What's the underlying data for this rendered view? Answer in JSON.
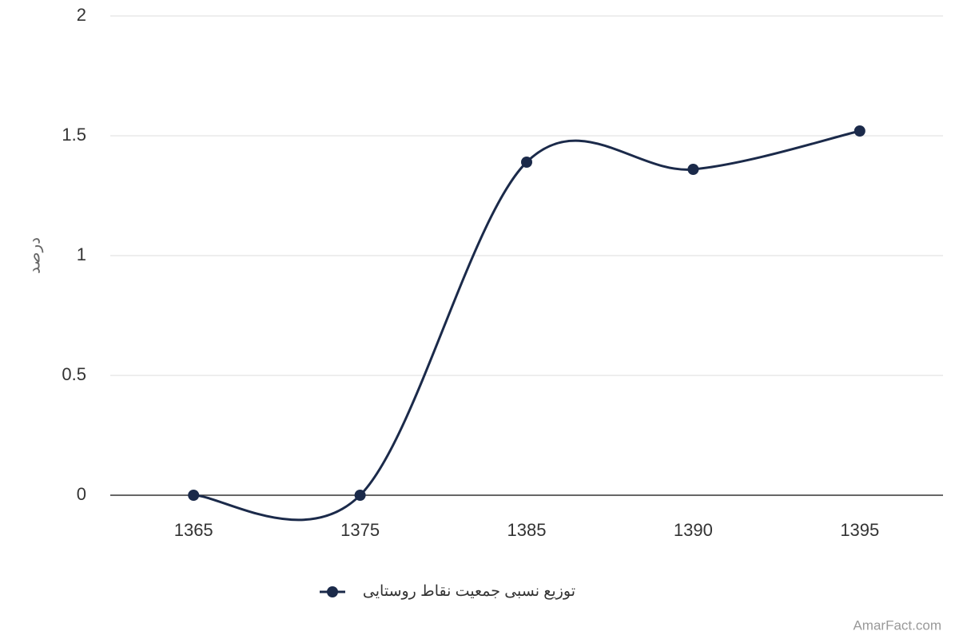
{
  "chart_data": {
    "type": "line",
    "y_label": "درصد",
    "categories": [
      "1365",
      "1375",
      "1385",
      "1390",
      "1395"
    ],
    "series": [
      {
        "name": "توزیع نسبی جمعیت نقاط روستایی",
        "color": "#1b2a4a",
        "values": [
          0,
          0,
          1.39,
          1.36,
          1.52
        ]
      }
    ],
    "ylim": [
      0,
      2
    ],
    "yticks": [
      0,
      0.5,
      1,
      1.5,
      2
    ],
    "grid": true,
    "smooth": true,
    "credit": "AmarFact.com"
  }
}
